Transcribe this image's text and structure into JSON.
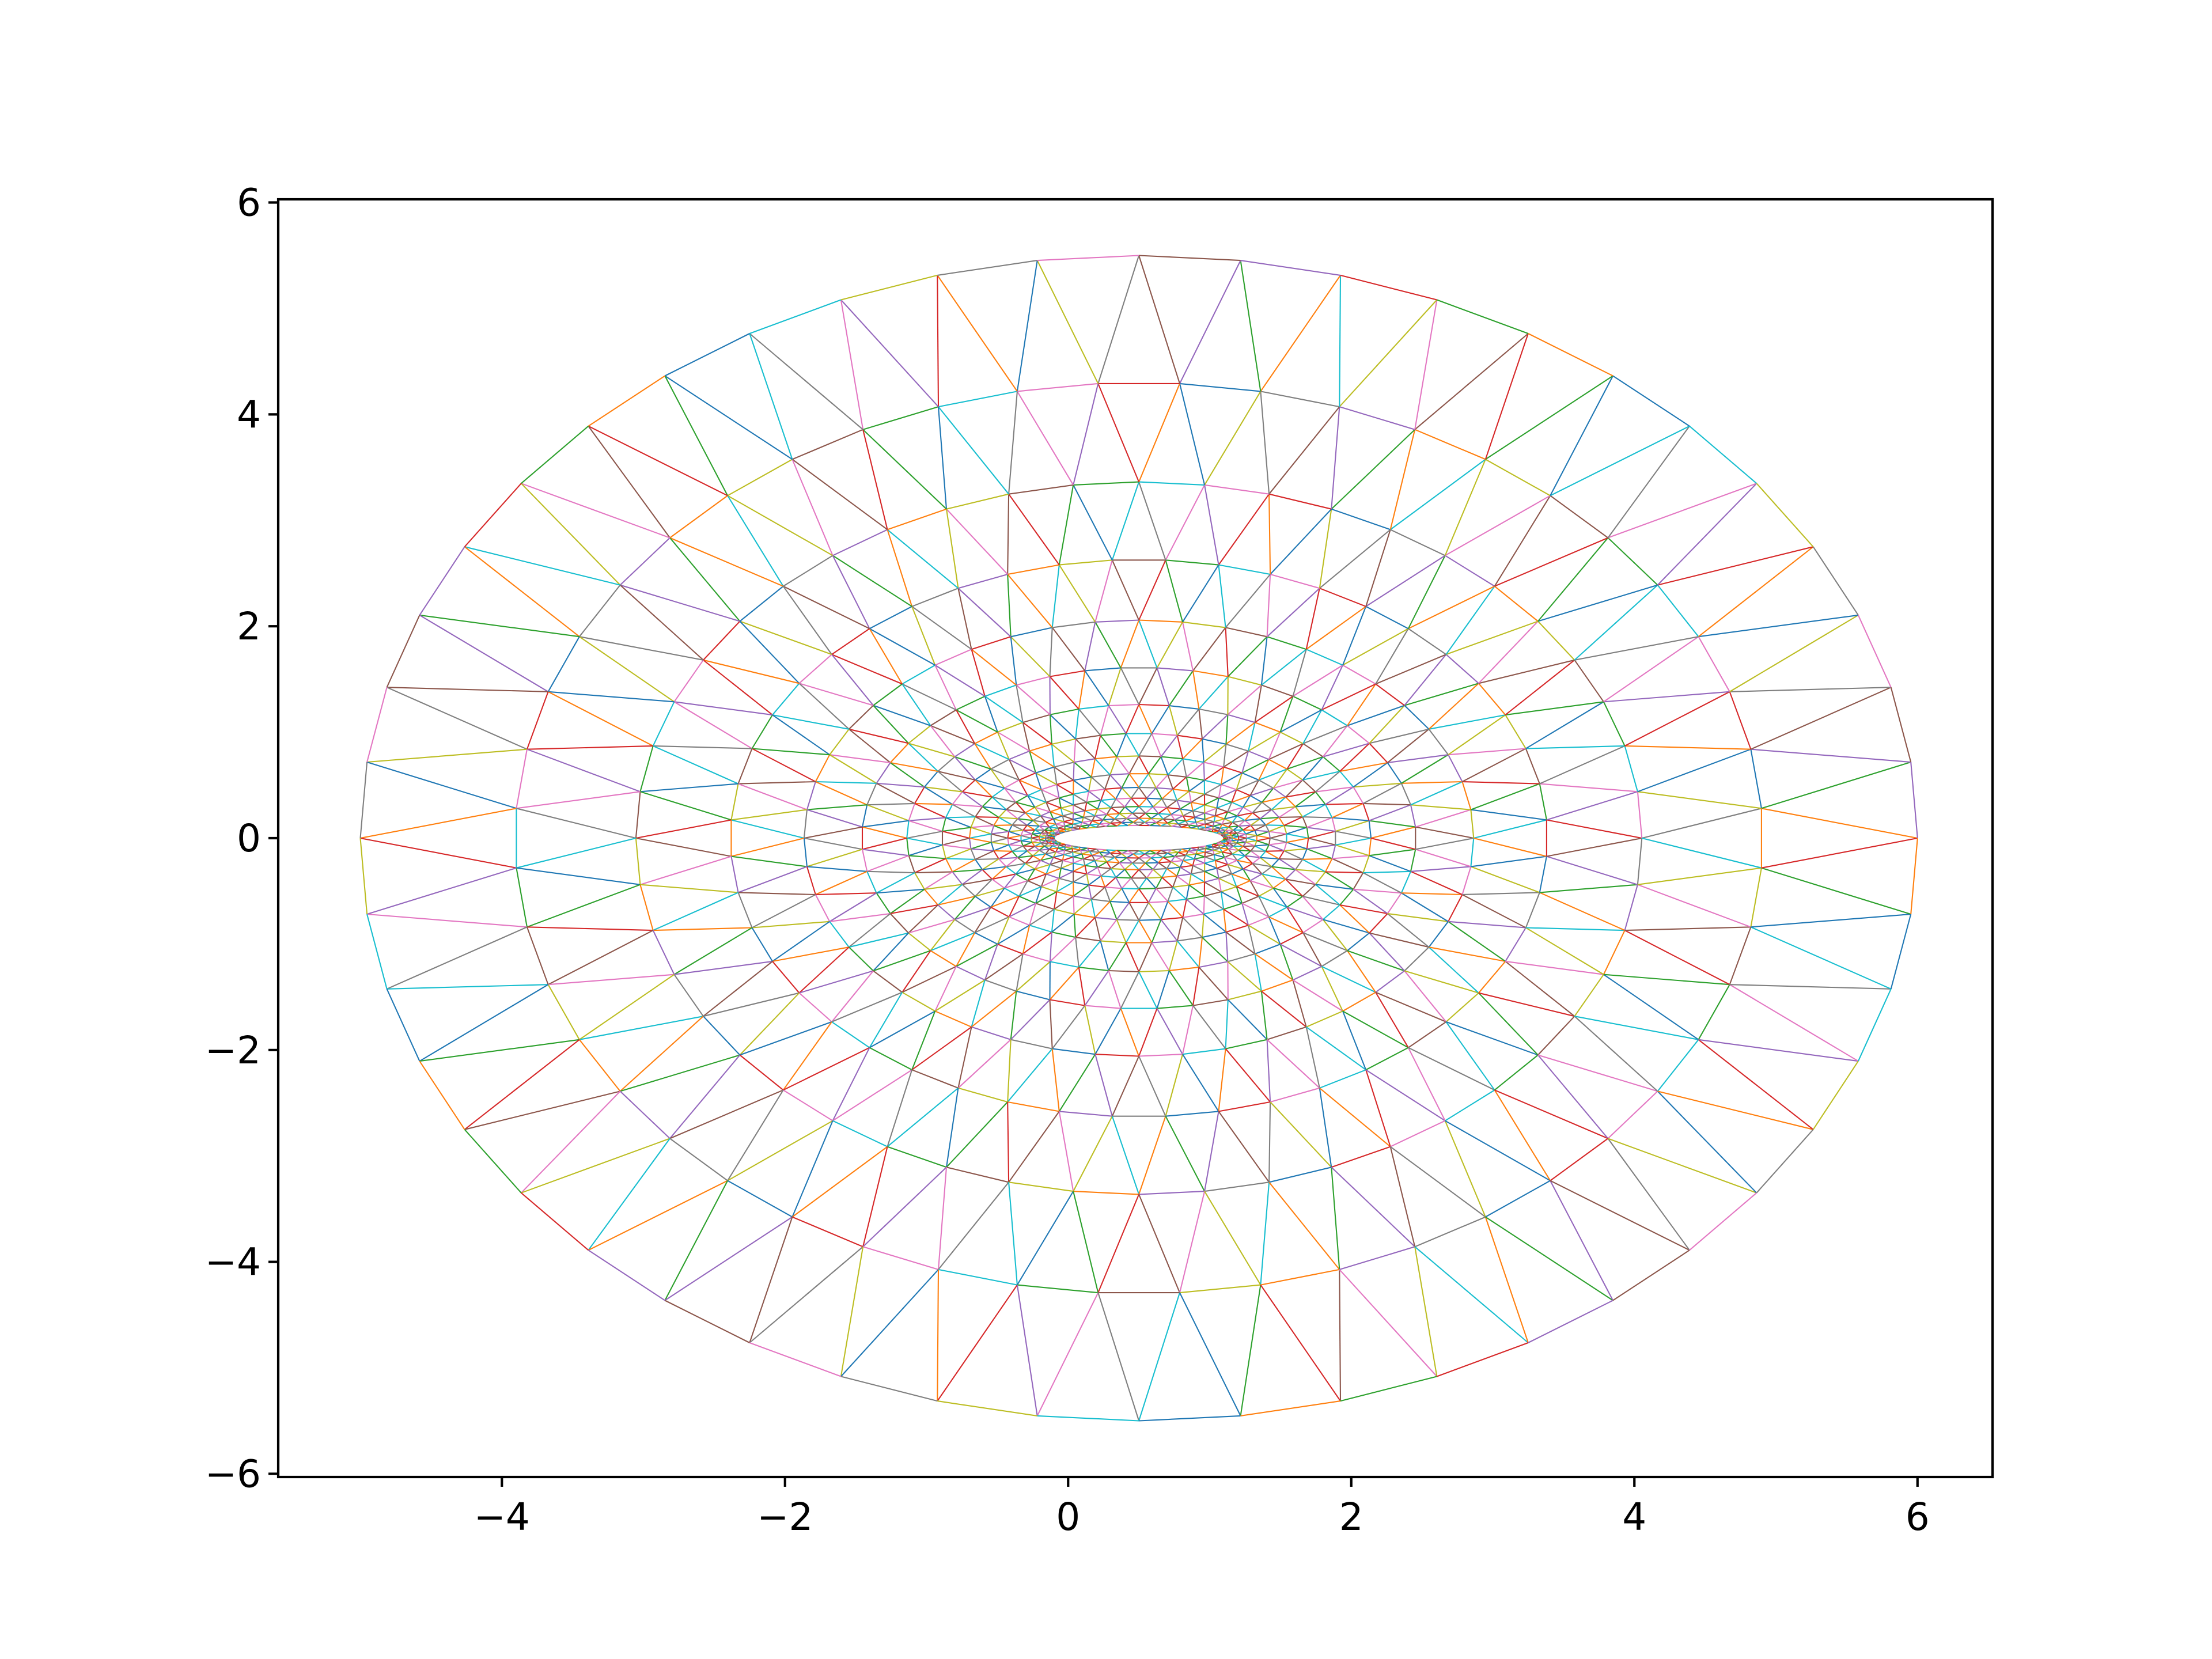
{
  "chart_data": {
    "type": "line",
    "title": "",
    "xlabel": "",
    "ylabel": "",
    "xlim": [
      -5.58,
      6.53
    ],
    "ylim": [
      -6.03,
      6.03
    ],
    "x_ticks": [
      -4,
      -2,
      0,
      2,
      4,
      6
    ],
    "y_ticks": [
      -6,
      -4,
      -2,
      0,
      2,
      4,
      6
    ],
    "x_tick_labels": [
      "−4",
      "−2",
      "0",
      "2",
      "4",
      "6"
    ],
    "y_tick_labels": [
      "−6",
      "−4",
      "−2",
      "0",
      "2",
      "4",
      "6"
    ],
    "grid": false,
    "legend": "none",
    "mesh": {
      "description_free": true,
      "center": [
        0.5,
        0.0
      ],
      "outer_radius_x": 5.5,
      "outer_radius_y": 5.5,
      "inner_radius_x": 0.6,
      "inner_radius_y": 0.12,
      "rings": 16,
      "sectors": 48,
      "ring_growth": 1.28
    },
    "edge_colors": [
      "#1f77b4",
      "#ff7f0e",
      "#2ca02c",
      "#d62728",
      "#9467bd",
      "#8c564b",
      "#e377c2",
      "#7f7f7f",
      "#bcbd22",
      "#17becf"
    ]
  }
}
